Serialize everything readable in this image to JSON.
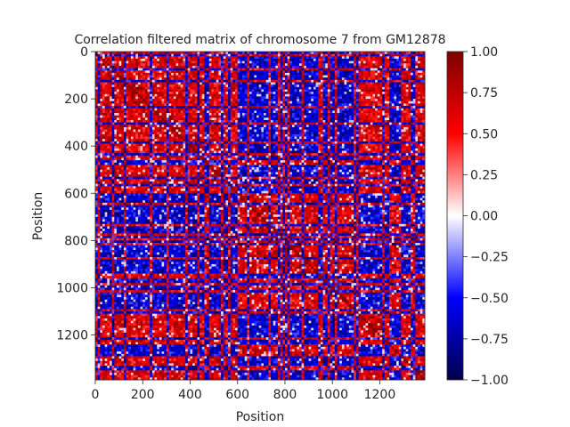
{
  "chart_data": {
    "type": "heatmap",
    "title": "Correlation filtered matrix of chromosome 7 from GM12878",
    "xlabel": "Position",
    "ylabel": "Position",
    "xlim": [
      0,
      1390
    ],
    "ylim": [
      1390,
      0
    ],
    "x_ticks": [
      0,
      200,
      400,
      600,
      800,
      1000,
      1200
    ],
    "y_ticks": [
      0,
      200,
      400,
      600,
      800,
      1000,
      1200
    ],
    "x_tick_labels": [
      "0",
      "200",
      "400",
      "600",
      "800",
      "1000",
      "1200"
    ],
    "y_tick_labels": [
      "0",
      "200",
      "400",
      "600",
      "800",
      "1000",
      "1200"
    ],
    "colorbar": {
      "colormap": "seismic",
      "vmin": -1.0,
      "vmax": 1.0,
      "ticks": [
        1.0,
        0.75,
        0.5,
        0.25,
        0.0,
        -0.25,
        -0.5,
        -0.75,
        -1.0
      ],
      "tick_labels": [
        "1.00",
        "0.75",
        "0.50",
        "0.25",
        "0.00",
        "−0.25",
        "−0.50",
        "−0.75",
        "−1.00"
      ],
      "colors": [
        "#00004c",
        "#0000ff",
        "#ffffff",
        "#ff0000",
        "#800000"
      ]
    },
    "compartments": [
      {
        "start": 0,
        "end": 140,
        "value": 1
      },
      {
        "start": 140,
        "end": 200,
        "value": 1
      },
      {
        "start": 200,
        "end": 280,
        "value": 1
      },
      {
        "start": 280,
        "end": 320,
        "value": 1
      },
      {
        "start": 320,
        "end": 380,
        "value": 1
      },
      {
        "start": 380,
        "end": 440,
        "value": 1
      },
      {
        "start": 440,
        "end": 500,
        "value": 1
      },
      {
        "start": 500,
        "end": 560,
        "value": 1
      },
      {
        "start": 560,
        "end": 600,
        "value": 1
      },
      {
        "start": 600,
        "end": 660,
        "value": -1
      },
      {
        "start": 660,
        "end": 760,
        "value": -1
      },
      {
        "start": 760,
        "end": 800,
        "value": -1
      },
      {
        "start": 800,
        "end": 860,
        "value": -1
      },
      {
        "start": 860,
        "end": 930,
        "value": -1
      },
      {
        "start": 930,
        "end": 1000,
        "value": -1
      },
      {
        "start": 1000,
        "end": 1060,
        "value": -1
      },
      {
        "start": 1060,
        "end": 1100,
        "value": -1
      },
      {
        "start": 1100,
        "end": 1180,
        "value": 1
      },
      {
        "start": 1180,
        "end": 1240,
        "value": 1
      },
      {
        "start": 1240,
        "end": 1290,
        "value": -1
      },
      {
        "start": 1290,
        "end": 1390,
        "value": 1
      }
    ]
  }
}
